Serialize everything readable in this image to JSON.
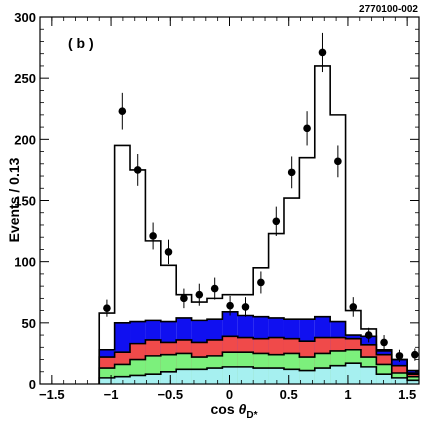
{
  "chart_data": {
    "type": "bar",
    "figure_id": "2770100-002",
    "panel_label": "( b )",
    "xlabel_main": "cos ",
    "xlabel_theta": "θ",
    "xlabel_sub": "D*",
    "ylabel": "Events / 0.13",
    "xlim": [
      -1.6,
      1.6
    ],
    "ylim": [
      0,
      300
    ],
    "xticks": [
      -1.5,
      -1.0,
      -0.5,
      0,
      0.5,
      1.0,
      1.5
    ],
    "xtick_labels": [
      "−1.5",
      "−1",
      "−0.5",
      "0",
      "0.5",
      "1",
      "1.5"
    ],
    "yticks": [
      0,
      50,
      100,
      150,
      200,
      250,
      300
    ],
    "ytick_labels": [
      "0",
      "50",
      "100",
      "150",
      "200",
      "250",
      "300"
    ],
    "bin_edges": [
      -1.1,
      -0.97,
      -0.84,
      -0.71,
      -0.58,
      -0.45,
      -0.32,
      -0.19,
      -0.06,
      0.07,
      0.2,
      0.33,
      0.46,
      0.59,
      0.72,
      0.85,
      0.98,
      1.11,
      1.24,
      1.37,
      1.5,
      1.63
    ],
    "bin_centers": [
      -1.035,
      -0.905,
      -0.775,
      -0.645,
      -0.515,
      -0.385,
      -0.255,
      -0.125,
      0.005,
      0.135,
      0.265,
      0.395,
      0.525,
      0.655,
      0.785,
      0.915,
      1.045,
      1.175,
      1.305,
      1.435,
      1.565
    ],
    "series": [
      {
        "name": "",
        "kind": "fill",
        "color": "#a6f0f0",
        "values": [
          5,
          6,
          7,
          8,
          10,
          12,
          12,
          13,
          14,
          14,
          13,
          13,
          12,
          11,
          13,
          15,
          17,
          14,
          8,
          5,
          3
        ]
      },
      {
        "name": "",
        "kind": "fill",
        "color": "#7cf07c",
        "values": [
          13,
          16,
          20,
          23,
          24,
          25,
          22,
          23,
          26,
          26,
          25,
          24,
          25,
          22,
          25,
          27,
          28,
          22,
          16,
          9,
          6
        ]
      },
      {
        "name": "",
        "kind": "fill",
        "color": "#f04a4a",
        "values": [
          22,
          26,
          33,
          36,
          34,
          36,
          34,
          36,
          39,
          38,
          37,
          38,
          37,
          35,
          38,
          38,
          37,
          32,
          24,
          15,
          9
        ]
      },
      {
        "name": "",
        "kind": "fill",
        "color": "#1010f0",
        "values": [
          28,
          50,
          51,
          52,
          51,
          54,
          52,
          53,
          59,
          56,
          55,
          54,
          53,
          53,
          55,
          51,
          40,
          39,
          28,
          20,
          11
        ]
      },
      {
        "name": "",
        "kind": "step",
        "color": "#000000",
        "values": [
          58,
          195,
          175,
          117,
          97,
          73,
          67,
          70,
          73,
          73,
          95,
          123,
          152,
          185,
          260,
          220,
          60,
          45,
          27,
          20,
          8
        ]
      },
      {
        "name": "",
        "kind": "points",
        "color": "#000000",
        "values": [
          62,
          223,
          175,
          121,
          108,
          70,
          73,
          78,
          64,
          63,
          83,
          133,
          173,
          209,
          271,
          182,
          63,
          40,
          34,
          23,
          24
        ],
        "errors": [
          7,
          15,
          13,
          11,
          10,
          8,
          9,
          9,
          8,
          8,
          9,
          12,
          13,
          14,
          16,
          13,
          8,
          6,
          6,
          5,
          5
        ]
      }
    ]
  }
}
